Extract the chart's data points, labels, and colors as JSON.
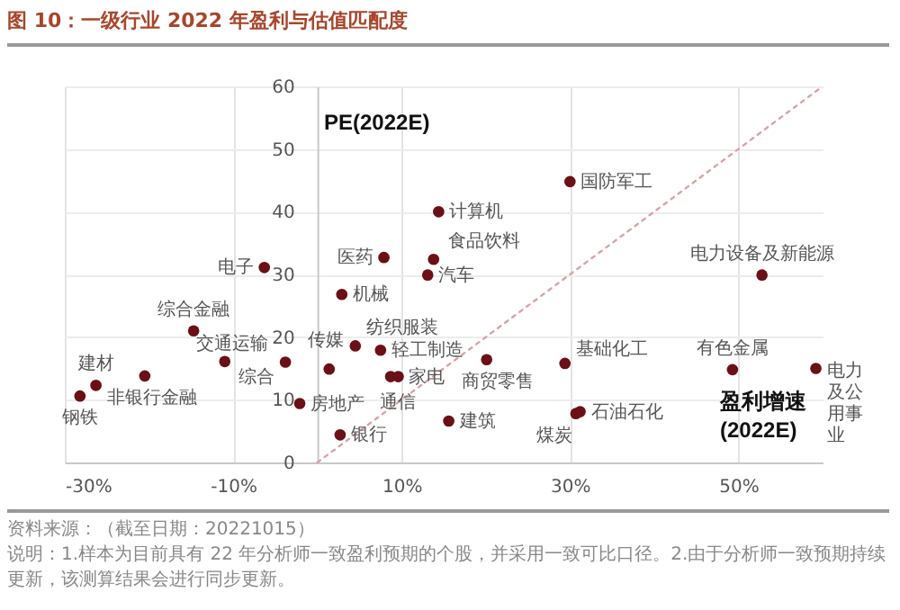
{
  "chart_data": {
    "type": "scatter",
    "title": "图 10：一级行业 2022 年盈利与估值匹配度",
    "xlabel": "盈利增速 (2022E)",
    "ylabel": "PE(2022E)",
    "x": [
      14.4,
      30,
      -6.3,
      7.9,
      13.8,
      13.1,
      2.9,
      52.8,
      -14.7,
      -11,
      -3.8,
      1.4,
      4.5,
      7.5,
      8.7,
      9.6,
      -2.1,
      2.7,
      15.6,
      -26.3,
      -28.2,
      -20.5,
      20.1,
      29.4,
      31.2,
      30.7,
      49.3,
      59.2
    ],
    "series": [
      {
        "type": "scatter",
        "marker": "circle",
        "color": "#6b1016",
        "values": [
          40,
          44.8,
          31.1,
          32.7,
          32.4,
          29.9,
          26.8,
          29.9,
          21,
          16.1,
          16,
          14.9,
          18.6,
          17.9,
          13.7,
          13.7,
          9.4,
          4.4,
          6.6,
          12.3,
          10.6,
          13.8,
          16.4,
          15.8,
          8.1,
          7.8,
          14.8,
          15
        ]
      },
      {
        "type": "line",
        "color": "#d9a3a3",
        "line_style": "dotted",
        "x": [
          0,
          60
        ],
        "values": [
          0,
          60
        ]
      }
    ],
    "xlim": [
      -30,
      60
    ],
    "ylim": [
      0,
      60
    ],
    "xticks": [
      {
        "value": -30,
        "label": "-30%"
      },
      {
        "value": -10,
        "label": "-10%"
      },
      {
        "value": 10,
        "label": "10%"
      },
      {
        "value": 30,
        "label": "30%"
      },
      {
        "value": 50,
        "label": "50%"
      }
    ],
    "yticks": [
      0,
      10,
      20,
      30,
      40,
      50,
      60
    ],
    "grid": true,
    "annotations": [
      {
        "text": "计算机",
        "x": 14.4,
        "y": 40
      },
      {
        "text": "国防军工",
        "x": 30,
        "y": 44.8
      },
      {
        "text": "电子",
        "x": -6.3,
        "y": 31.1
      },
      {
        "text": "医药",
        "x": 7.9,
        "y": 32.7
      },
      {
        "text": "食品饮料",
        "x": 13.8,
        "y": 32.4
      },
      {
        "text": "汽车",
        "x": 13.1,
        "y": 29.9
      },
      {
        "text": "机械",
        "x": 2.9,
        "y": 26.8
      },
      {
        "text": "电力设备及新能源",
        "x": 52.8,
        "y": 29.9
      },
      {
        "text": "综合金融",
        "x": -14.7,
        "y": 21
      },
      {
        "text": "交通运输",
        "x": -11,
        "y": 16.1
      },
      {
        "text": "综合",
        "x": -3.8,
        "y": 16
      },
      {
        "text": "传媒",
        "x": 1.4,
        "y": 14.9
      },
      {
        "text": "纺织服装",
        "x": 4.5,
        "y": 18.6
      },
      {
        "text": "轻工制造",
        "x": 7.5,
        "y": 17.9
      },
      {
        "text": "通信",
        "x": 8.7,
        "y": 13.7
      },
      {
        "text": "家电",
        "x": 9.6,
        "y": 13.7
      },
      {
        "text": "房地产",
        "x": -2.1,
        "y": 9.4
      },
      {
        "text": "银行",
        "x": 2.7,
        "y": 4.4
      },
      {
        "text": "建筑",
        "x": 15.6,
        "y": 6.6
      },
      {
        "text": "建材",
        "x": -26.3,
        "y": 12.3
      },
      {
        "text": "钢铁",
        "x": -28.2,
        "y": 10.6
      },
      {
        "text": "非银行金融",
        "x": -20.5,
        "y": 13.8
      },
      {
        "text": "商贸零售",
        "x": 20.1,
        "y": 16.4
      },
      {
        "text": "基础化工",
        "x": 29.4,
        "y": 15.8
      },
      {
        "text": "石油石化",
        "x": 31.2,
        "y": 8.1
      },
      {
        "text": "煤炭",
        "x": 30.7,
        "y": 7.8
      },
      {
        "text": "有色金属",
        "x": 49.3,
        "y": 14.8
      },
      {
        "text": "电力及公用事业",
        "x": 59.2,
        "y": 15
      },
      "资料来源：（截至日期：20221015）",
      "说明：1.样本为目前具有 22 年分析师一致盈利预期的个股，并采用一致可比口径。2.由于分析师一致预期持续更新，该测算结果会进行同步更新。"
    ]
  }
}
